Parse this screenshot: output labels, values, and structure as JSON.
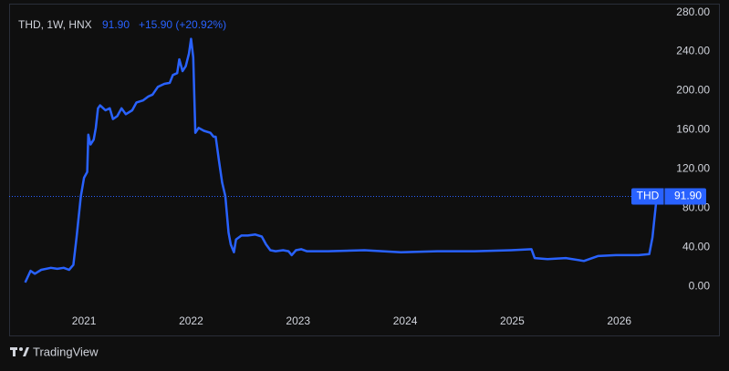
{
  "chart_data": {
    "type": "line",
    "title": "THD, 1W, HNX",
    "change": "+15.90 (+20.92%)",
    "brand": "TradingView",
    "last": {
      "value": 91.9,
      "label": "91.90"
    },
    "x": [
      2020.45,
      2020.5,
      2020.54,
      2020.6,
      2020.69,
      2020.75,
      2020.81,
      2020.86,
      2020.9,
      2020.93,
      2020.97,
      2021.0,
      2021.03,
      2021.04,
      2021.06,
      2021.09,
      2021.11,
      2021.13,
      2021.15,
      2021.2,
      2021.24,
      2021.27,
      2021.31,
      2021.35,
      2021.39,
      2021.45,
      2021.49,
      2021.55,
      2021.6,
      2021.64,
      2021.69,
      2021.75,
      2021.8,
      2021.83,
      2021.87,
      2021.89,
      2021.92,
      2021.95,
      2021.98,
      2022.0,
      2022.02,
      2022.04,
      2022.07,
      2022.12,
      2022.18,
      2022.21,
      2022.23,
      2022.26,
      2022.29,
      2022.32,
      2022.35,
      2022.37,
      2022.4,
      2022.42,
      2022.47,
      2022.53,
      2022.6,
      2022.66,
      2022.7,
      2022.74,
      2022.79,
      2022.86,
      2022.91,
      2022.94,
      2022.98,
      2023.03,
      2023.08,
      2023.28,
      2023.62,
      2023.96,
      2024.3,
      2024.65,
      2024.99,
      2025.18,
      2025.21,
      2025.33,
      2025.5,
      2025.67,
      2025.8,
      2025.97,
      2026.18,
      2026.28,
      2026.31,
      2026.35
    ],
    "series": [
      {
        "name": "THD",
        "color": "#2962ff",
        "values": [
          4,
          16,
          13,
          17,
          19,
          18,
          19,
          17,
          22,
          50,
          92,
          111,
          117,
          155,
          145,
          150,
          162,
          182,
          185,
          180,
          182,
          171,
          174,
          182,
          176,
          180,
          188,
          190,
          194,
          196,
          204,
          207,
          208,
          216,
          218,
          232,
          220,
          225,
          238,
          253,
          234,
          157,
          162,
          159,
          157,
          153,
          153,
          129,
          106,
          92,
          55,
          43,
          35,
          48,
          52,
          52,
          53,
          51,
          43,
          37,
          36,
          37,
          36,
          32,
          37,
          38,
          36,
          36,
          37,
          35,
          36,
          36,
          37,
          38,
          29,
          28,
          29,
          26,
          31,
          32,
          32,
          33,
          50,
          91.9
        ]
      }
    ],
    "xlim": [
      2020.3,
      2026.42
    ],
    "xticks": [
      2021,
      2022,
      2023,
      2024,
      2025,
      2026
    ],
    "ylim": [
      -24,
      288
    ],
    "yticks": [
      {
        "value": 0,
        "label": "0.00"
      },
      {
        "value": 40,
        "label": "40.00"
      },
      {
        "value": 80,
        "label": "80.00"
      },
      {
        "value": 120,
        "label": "120.00"
      },
      {
        "value": 160,
        "label": "160.00"
      },
      {
        "value": 200,
        "label": "200.00"
      },
      {
        "value": 240,
        "label": "240.00"
      },
      {
        "value": 280,
        "label": "280.00"
      }
    ]
  }
}
